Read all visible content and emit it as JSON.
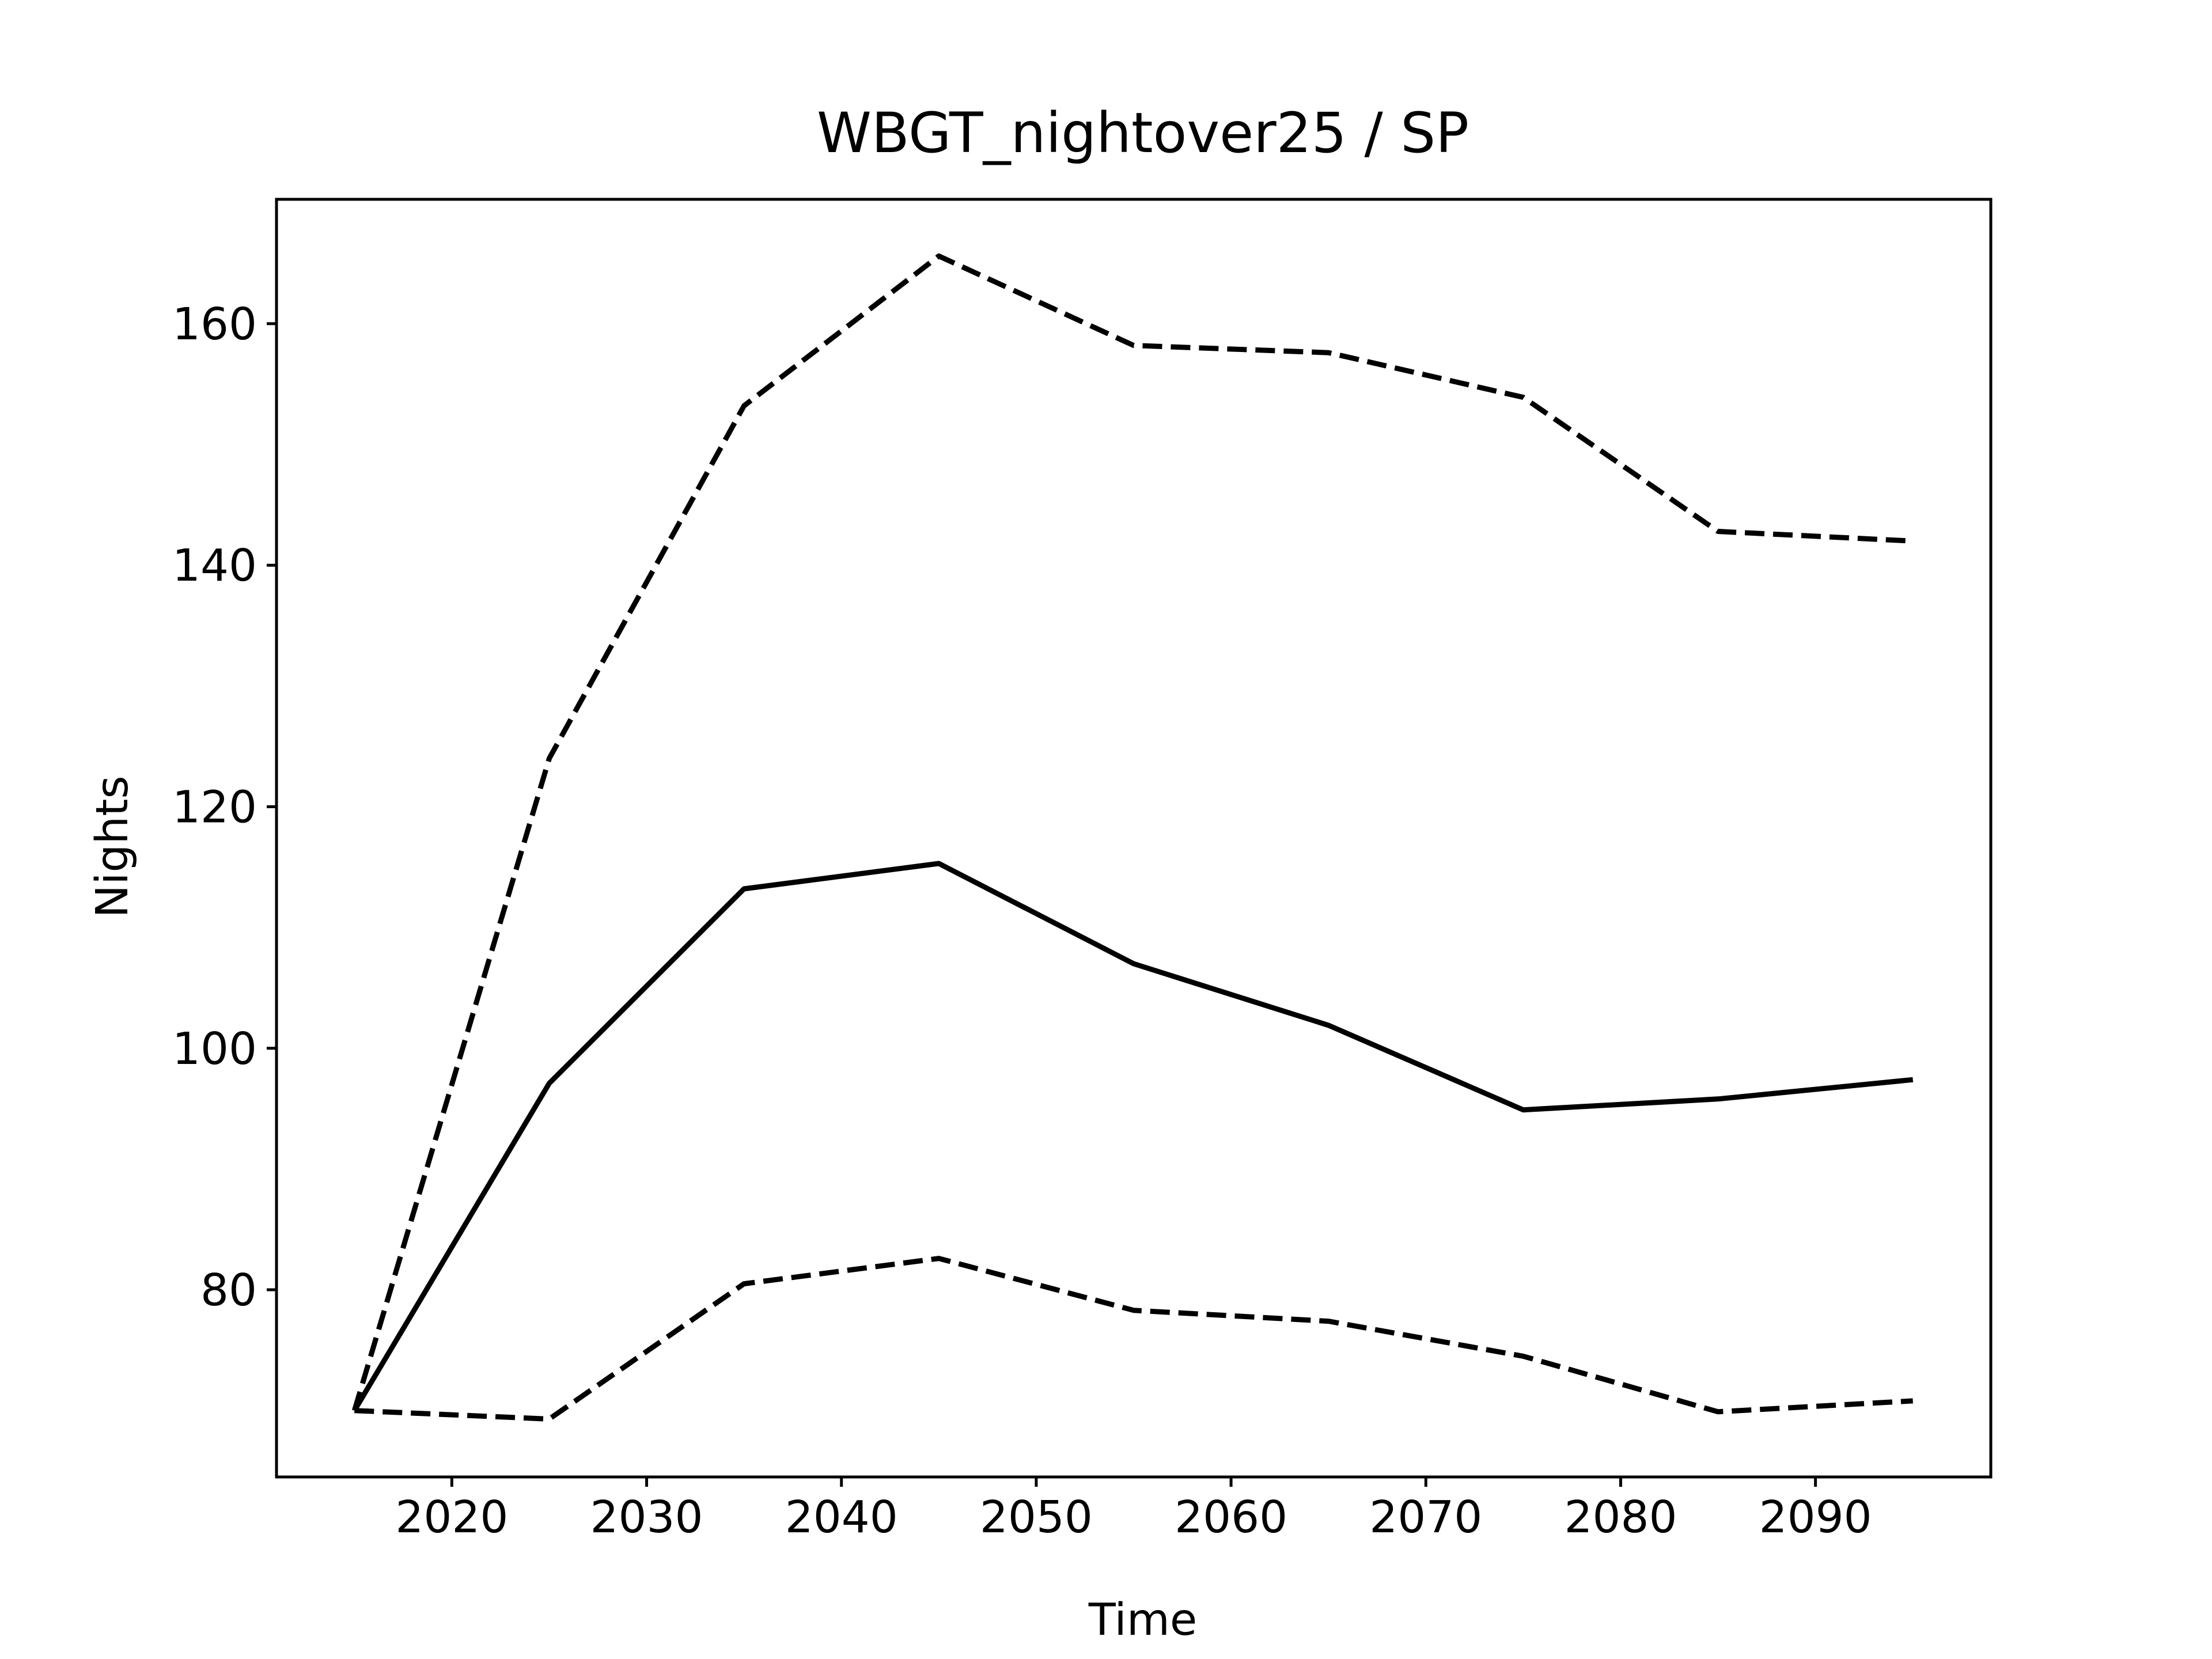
{
  "chart_data": {
    "type": "line",
    "title": "WBGT_nightover25 / SP",
    "xlabel": "Time",
    "ylabel": "Nights",
    "xlim": [
      2011,
      2099
    ],
    "ylim": [
      64.5,
      170.3
    ],
    "xticks": [
      2020,
      2030,
      2040,
      2050,
      2060,
      2070,
      2080,
      2090
    ],
    "yticks": [
      80,
      100,
      120,
      140,
      160
    ],
    "grid": false,
    "legend": "none",
    "x": [
      2015,
      2025,
      2035,
      2045,
      2055,
      2065,
      2075,
      2085,
      2095
    ],
    "series": [
      {
        "style": "dashed",
        "color": "#000000",
        "values": [
          70.0,
          124.0,
          153.2,
          165.6,
          158.2,
          157.6,
          153.9,
          142.8,
          142.0
        ]
      },
      {
        "style": "solid",
        "color": "#000000",
        "values": [
          70.0,
          97.1,
          113.2,
          115.3,
          107.0,
          101.9,
          94.9,
          95.8,
          97.4
        ]
      },
      {
        "style": "dashed",
        "color": "#000000",
        "values": [
          70.0,
          69.3,
          80.5,
          82.6,
          78.3,
          77.4,
          74.5,
          69.9,
          70.8
        ]
      }
    ]
  }
}
